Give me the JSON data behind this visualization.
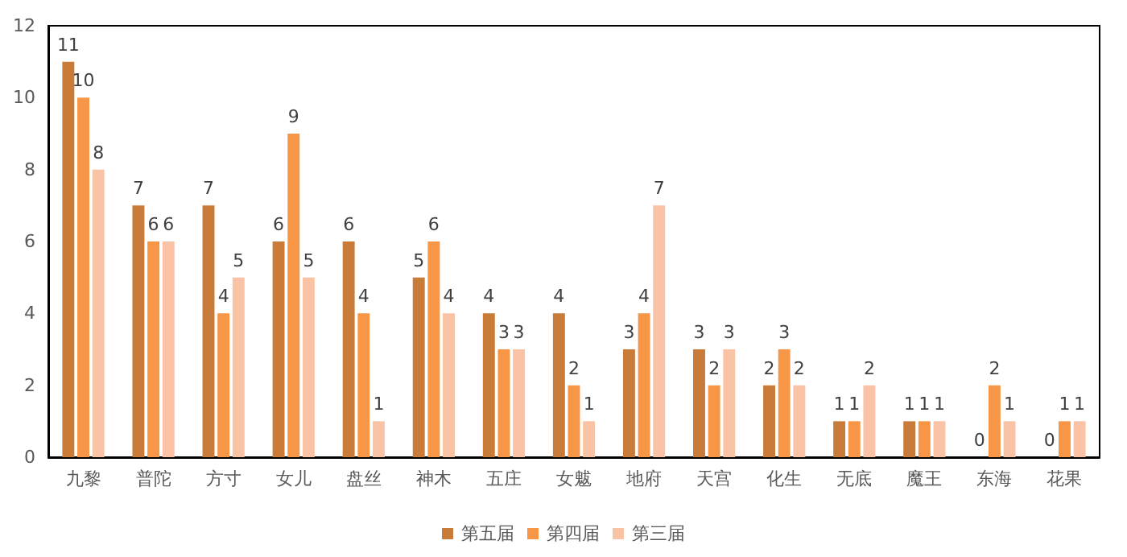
{
  "chart_data": {
    "type": "bar",
    "categories": [
      "九黎",
      "普陀",
      "方寸",
      "女儿",
      "盘丝",
      "神木",
      "五庄",
      "女魃",
      "地府",
      "天宫",
      "化生",
      "无底",
      "魔王",
      "东海",
      "花果"
    ],
    "series": [
      {
        "name": "第五届",
        "color": "#c97b3a",
        "values": [
          11,
          7,
          7,
          6,
          6,
          5,
          4,
          4,
          3,
          3,
          2,
          1,
          1,
          0,
          0
        ]
      },
      {
        "name": "第四届",
        "color": "#f79646",
        "values": [
          10,
          6,
          4,
          9,
          4,
          6,
          3,
          2,
          4,
          2,
          3,
          1,
          1,
          2,
          1
        ]
      },
      {
        "name": "第三届",
        "color": "#fac3a5",
        "values": [
          8,
          6,
          5,
          5,
          1,
          4,
          3,
          1,
          7,
          3,
          2,
          2,
          1,
          1,
          1
        ]
      }
    ],
    "ylim": [
      0,
      12
    ],
    "yticks": [
      0,
      2,
      4,
      6,
      8,
      10,
      12
    ],
    "grid": false,
    "legend": "bottom",
    "data_labels": true
  }
}
